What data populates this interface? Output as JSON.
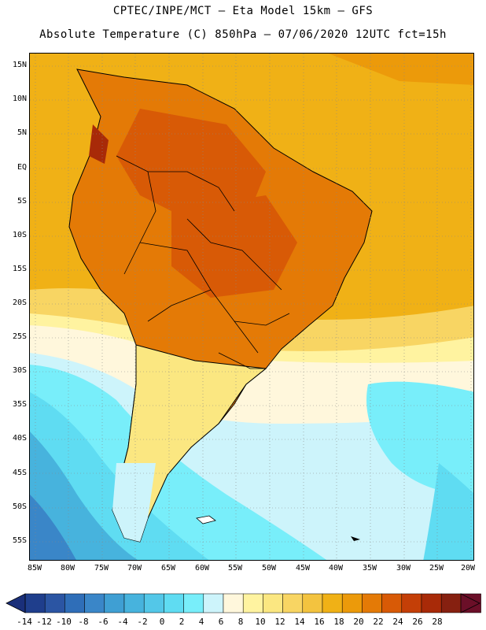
{
  "header": {
    "line1": "CPTEC/INPE/MCT –  Eta Model 15km – GFS",
    "line2": "Absolute Temperature (C) 850hPa – 07/06/2020 12UTC fct=15h"
  },
  "map": {
    "region": "South America",
    "lat_labels": [
      "15N",
      "10N",
      "5N",
      "EQ",
      "5S",
      "10S",
      "15S",
      "20S",
      "25S",
      "30S",
      "35S",
      "40S",
      "45S",
      "50S",
      "55S"
    ],
    "lon_labels": [
      "85W",
      "80W",
      "75W",
      "70W",
      "65W",
      "60W",
      "55W",
      "50W",
      "45W",
      "40W",
      "35W",
      "30W",
      "25W",
      "20W"
    ]
  },
  "colorbar": {
    "labels": [
      "-14",
      "-12",
      "-10",
      "-8",
      "-6",
      "-4",
      "-2",
      "0",
      "2",
      "4",
      "6",
      "8",
      "10",
      "12",
      "14",
      "16",
      "18",
      "20",
      "22",
      "24",
      "26",
      "28"
    ],
    "colors": [
      "#1f3e8c",
      "#2b55a3",
      "#2f6eb8",
      "#3a86c8",
      "#3f9fd3",
      "#47b3dd",
      "#53c7e8",
      "#5fdcf2",
      "#78eefa",
      "#cdf4fb",
      "#fff7dc",
      "#fff3a0",
      "#fbe781",
      "#f8d563",
      "#f3c33f",
      "#f0b116",
      "#ec9a0a",
      "#e47a06",
      "#d85a06",
      "#c43f07",
      "#a82a08",
      "#862010",
      "#6b0f28"
    ],
    "under_color": "#1a2f7a",
    "over_color": "#6b0f28"
  }
}
